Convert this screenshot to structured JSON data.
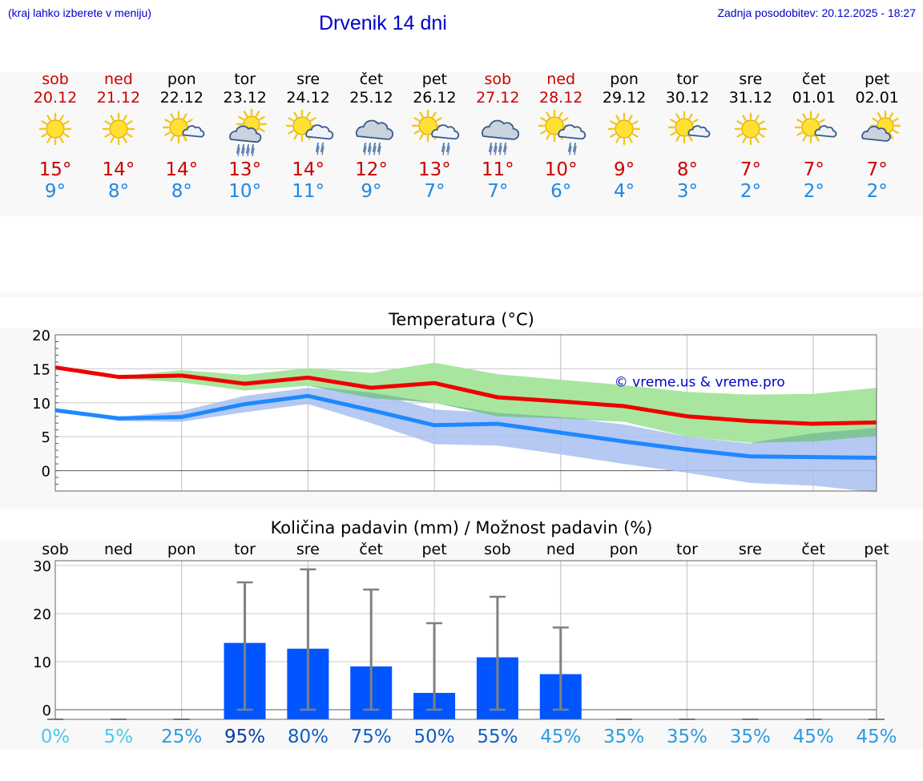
{
  "header": {
    "hint": "(kraj lahko izberete v meniju)",
    "title": "Drvenik 14 dni",
    "updated": "Zadnja posodobitev: 20.12.2025 - 18:27"
  },
  "days": [
    {
      "name": "sob",
      "date": "20.12",
      "icon": "sun-icon",
      "tmax": "15°",
      "tmin": "9°",
      "weekend": true
    },
    {
      "name": "ned",
      "date": "21.12",
      "icon": "sun-icon",
      "tmax": "14°",
      "tmin": "8°",
      "weekend": true
    },
    {
      "name": "pon",
      "date": "22.12",
      "icon": "sun-small-cloud-icon",
      "tmax": "14°",
      "tmin": "8°",
      "weekend": false
    },
    {
      "name": "tor",
      "date": "23.12",
      "icon": "sun-cloud-rain-icon",
      "tmax": "13°",
      "tmin": "10°",
      "weekend": false
    },
    {
      "name": "sre",
      "date": "24.12",
      "icon": "sun-cloud-light-rain-icon",
      "tmax": "14°",
      "tmin": "11°",
      "weekend": false
    },
    {
      "name": "čet",
      "date": "25.12",
      "icon": "cloud-rain-icon",
      "tmax": "12°",
      "tmin": "9°",
      "weekend": false
    },
    {
      "name": "pet",
      "date": "26.12",
      "icon": "sun-cloud-light-rain-icon",
      "tmax": "13°",
      "tmin": "7°",
      "weekend": false
    },
    {
      "name": "sob",
      "date": "27.12",
      "icon": "cloud-rain-icon",
      "tmax": "11°",
      "tmin": "7°",
      "weekend": true
    },
    {
      "name": "ned",
      "date": "28.12",
      "icon": "sun-cloud-light-rain-icon",
      "tmax": "10°",
      "tmin": "6°",
      "weekend": true
    },
    {
      "name": "pon",
      "date": "29.12",
      "icon": "sun-icon",
      "tmax": "9°",
      "tmin": "4°",
      "weekend": false
    },
    {
      "name": "tor",
      "date": "30.12",
      "icon": "sun-small-cloud-icon",
      "tmax": "8°",
      "tmin": "3°",
      "weekend": false
    },
    {
      "name": "sre",
      "date": "31.12",
      "icon": "sun-icon",
      "tmax": "7°",
      "tmin": "2°",
      "weekend": false
    },
    {
      "name": "čet",
      "date": "01.01",
      "icon": "sun-small-cloud-icon",
      "tmax": "7°",
      "tmin": "2°",
      "weekend": false
    },
    {
      "name": "pet",
      "date": "02.01",
      "icon": "cloud-sun-icon",
      "tmax": "7°",
      "tmin": "2°",
      "weekend": false
    }
  ],
  "colors": {
    "max_line": "#ee0000",
    "min_line": "#1e88ff",
    "max_band": "#a8e6a0",
    "min_band": "#a8c0f0",
    "overlap_band": "#7fc49a",
    "bar": "#0055ff",
    "whisker": "#808080",
    "title": "#0000cc"
  },
  "chart_data": [
    {
      "type": "line",
      "title": "Temperatura (°C)",
      "watermark": "© vreme.us & vreme.pro",
      "x": [
        0,
        1,
        2,
        3,
        4,
        5,
        6,
        7,
        8,
        9,
        10,
        11,
        12,
        13
      ],
      "yticks": [
        0,
        5,
        10,
        15,
        20
      ],
      "ylim": [
        -3,
        20
      ],
      "series": [
        {
          "name": "max",
          "values": [
            15.2,
            13.8,
            14.0,
            12.8,
            13.7,
            12.2,
            12.9,
            10.8,
            10.2,
            9.5,
            8.0,
            7.3,
            6.9,
            7.1
          ]
        },
        {
          "name": "min",
          "values": [
            8.9,
            7.7,
            7.9,
            9.8,
            11.0,
            8.9,
            6.7,
            6.9,
            5.6,
            4.3,
            3.1,
            2.1,
            2.0,
            1.9
          ]
        }
      ],
      "bands": [
        {
          "name": "max range",
          "low": [
            15.2,
            13.6,
            13.0,
            11.8,
            12.5,
            10.7,
            10.0,
            8.0,
            7.7,
            7.2,
            5.0,
            4.1,
            4.3,
            5.1
          ],
          "high": [
            15.2,
            13.9,
            14.8,
            14.1,
            15.1,
            14.4,
            15.9,
            14.2,
            13.4,
            12.6,
            11.6,
            11.2,
            11.3,
            12.2
          ]
        },
        {
          "name": "min range",
          "low": [
            8.9,
            7.3,
            7.2,
            8.6,
            9.8,
            7.0,
            3.9,
            3.7,
            2.4,
            1.0,
            -0.3,
            -1.8,
            -2.2,
            -3.2
          ],
          "high": [
            8.9,
            7.9,
            8.8,
            11.0,
            12.2,
            11.5,
            9.0,
            8.5,
            7.9,
            6.8,
            5.0,
            4.0,
            5.5,
            6.3
          ]
        }
      ]
    },
    {
      "type": "bar",
      "title": "Količina padavin (mm) / Možnost padavin (%)",
      "categories": [
        "sob",
        "ned",
        "pon",
        "tor",
        "sre",
        "čet",
        "pet",
        "sob",
        "ned",
        "pon",
        "tor",
        "sre",
        "čet",
        "pet"
      ],
      "yticks": [
        0,
        10,
        20,
        30
      ],
      "ylim": [
        -2,
        31
      ],
      "values": [
        0,
        0,
        0,
        13.9,
        12.7,
        9.0,
        3.5,
        10.9,
        7.4,
        0,
        0,
        0,
        0,
        0
      ],
      "err_low": [
        0,
        0,
        0,
        0,
        0,
        0,
        0,
        0,
        0,
        0,
        0,
        0,
        0,
        0
      ],
      "err_high": [
        0,
        0,
        0,
        26.5,
        29.2,
        25.0,
        18.0,
        23.5,
        17.1,
        0,
        0,
        0,
        0,
        0
      ],
      "probability": [
        "0%",
        "5%",
        "25%",
        "95%",
        "80%",
        "75%",
        "50%",
        "55%",
        "45%",
        "35%",
        "35%",
        "35%",
        "45%",
        "45%"
      ],
      "probability_values": [
        0,
        5,
        25,
        95,
        80,
        75,
        50,
        55,
        45,
        35,
        35,
        35,
        45,
        45
      ]
    }
  ]
}
